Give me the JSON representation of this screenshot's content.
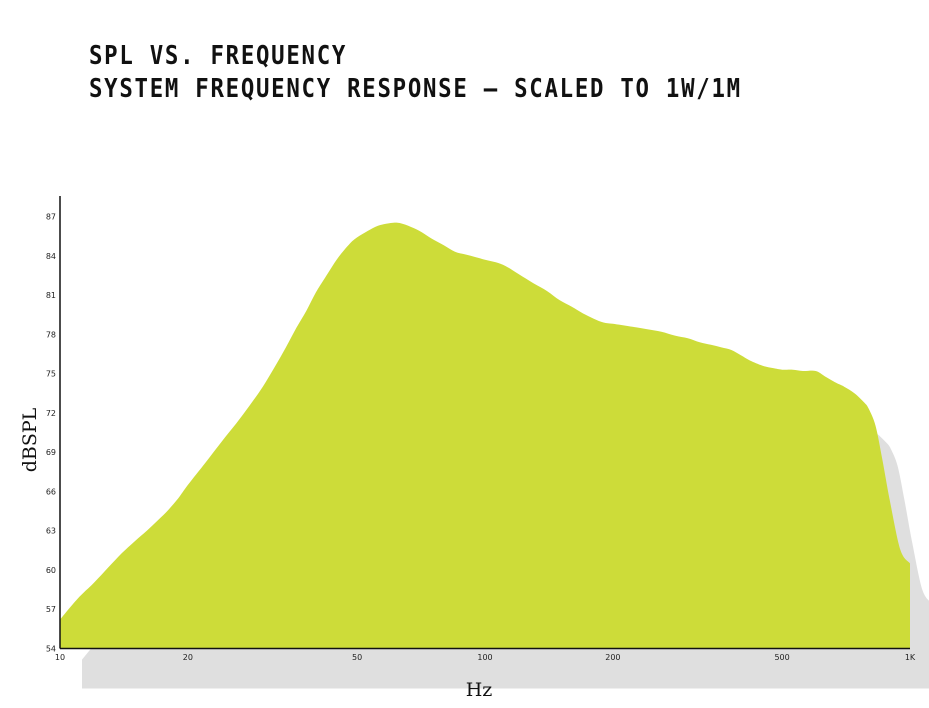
{
  "chart_data": {
    "type": "area",
    "title": "SPL VS. FREQUENCY",
    "subtitle": "SYSTEM FREQUENCY RESPONSE – SCALED TO 1W/1M",
    "xlabel": "Hz",
    "ylabel": "dBSPL",
    "x_scale": "log",
    "xlim": [
      10,
      1000
    ],
    "ylim": [
      54,
      88
    ],
    "x_ticks": [
      10,
      20,
      50,
      100,
      200,
      500,
      1000
    ],
    "x_tick_labels": [
      "10",
      "20",
      "50",
      "100",
      "200",
      "500",
      "1K"
    ],
    "y_ticks": [
      54,
      57,
      60,
      63,
      66,
      69,
      72,
      75,
      78,
      81,
      84,
      87
    ],
    "grid": false,
    "legend": "none",
    "fill_color": "#cddc39",
    "shadow_color": "#d9d9d9",
    "x": [
      10,
      11,
      12,
      13,
      14,
      15,
      16,
      17,
      18,
      19,
      20,
      22,
      24,
      26,
      28,
      30,
      32,
      34,
      36,
      38,
      40,
      42,
      45,
      48,
      50,
      53,
      56,
      60,
      63,
      67,
      71,
      75,
      80,
      85,
      90,
      95,
      100,
      106,
      112,
      120,
      130,
      140,
      150,
      160,
      170,
      180,
      190,
      200,
      220,
      240,
      260,
      280,
      300,
      320,
      340,
      360,
      380,
      400,
      420,
      450,
      480,
      500,
      530,
      560,
      600,
      630,
      670,
      700,
      740,
      780,
      800,
      830,
      860,
      900,
      950,
      1000
    ],
    "y": [
      56.2,
      57.8,
      59.0,
      60.2,
      61.3,
      62.2,
      63.0,
      63.8,
      64.6,
      65.5,
      66.5,
      68.2,
      69.8,
      71.2,
      72.6,
      74.0,
      75.5,
      77.0,
      78.5,
      79.8,
      81.2,
      82.3,
      83.8,
      84.9,
      85.4,
      85.9,
      86.3,
      86.5,
      86.5,
      86.2,
      85.8,
      85.3,
      84.8,
      84.3,
      84.1,
      83.9,
      83.7,
      83.5,
      83.2,
      82.6,
      81.9,
      81.3,
      80.6,
      80.1,
      79.6,
      79.2,
      78.9,
      78.8,
      78.6,
      78.4,
      78.2,
      77.9,
      77.7,
      77.4,
      77.2,
      77.0,
      76.8,
      76.4,
      76.0,
      75.6,
      75.4,
      75.3,
      75.3,
      75.2,
      75.2,
      74.8,
      74.3,
      74.0,
      73.5,
      72.8,
      72.3,
      71.0,
      68.5,
      65.0,
      61.5,
      60.5
    ]
  }
}
